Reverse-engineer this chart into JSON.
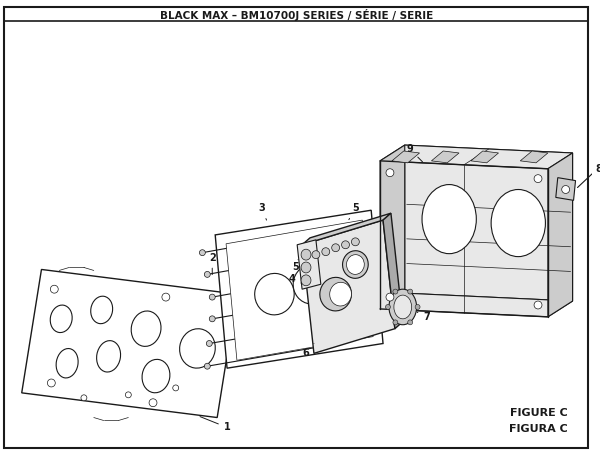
{
  "title": "BLACK MAX – BM10700J SERIES / SÉRIE / SERIE",
  "figure_label": "FIGURE C",
  "figura_label": "FIGURA C",
  "bg_color": "#ffffff",
  "line_color": "#1a1a1a",
  "gray_light": "#e8e8e8",
  "gray_mid": "#cccccc",
  "gray_dark": "#aaaaaa",
  "white": "#ffffff"
}
